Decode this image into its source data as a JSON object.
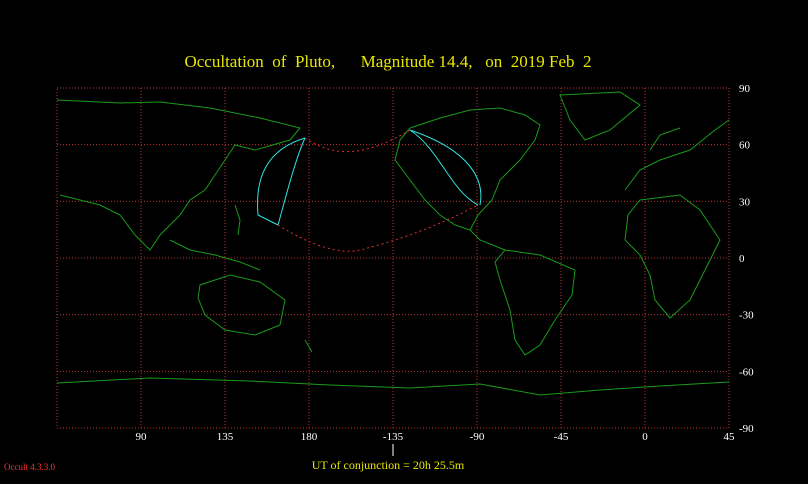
{
  "title": "Occultation  of  Pluto,      Magnitude 14.4,   on  2019 Feb  2",
  "map": {
    "lon_ticks": [
      90,
      135,
      180,
      -135,
      -90,
      -45,
      0,
      45
    ],
    "latlim": [
      -90,
      90
    ],
    "lat_ticks": [
      90,
      60,
      30,
      0,
      -30,
      -60,
      -90
    ]
  },
  "footer": {
    "conjunction": "UT of conjunction = 20h 25.5m",
    "version": "Occult 4.3.3.0"
  }
}
